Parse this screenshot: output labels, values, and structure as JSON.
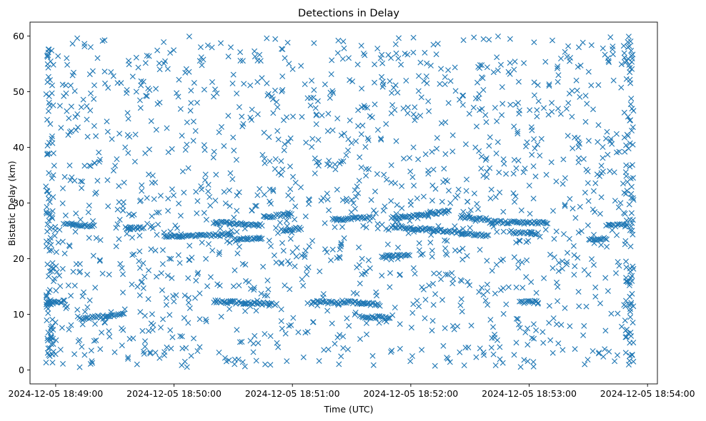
{
  "chart_data": {
    "type": "scatter",
    "title": "Detections in Delay",
    "xlabel": "Time (UTC)",
    "ylabel": "Bistatic Delay (km)",
    "marker": "x",
    "color": "#1f77b4",
    "grid": false,
    "legend": "none",
    "xlim": [
      "2024-12-05 18:48:47",
      "2024-12-05 18:54:05"
    ],
    "ylim": [
      -2.5,
      62.5
    ],
    "x_ticks": [
      "2024-12-05 18:49:00",
      "2024-12-05 18:50:00",
      "2024-12-05 18:51:00",
      "2024-12-05 18:52:00",
      "2024-12-05 18:53:00",
      "2024-12-05 18:54:00"
    ],
    "y_ticks": [
      "0",
      "10",
      "20",
      "30",
      "40",
      "50",
      "60"
    ],
    "y_tick_values": [
      0,
      10,
      20,
      30,
      40,
      50,
      60
    ],
    "x_start": "2024-12-05 18:48:55",
    "x_end": "2024-12-05 18:53:53",
    "tracks": [
      {
        "x_start": "2024-12-05 18:48:55",
        "x_end": "2024-12-05 18:49:05",
        "y_start": 12.0,
        "y_end": 12.4
      },
      {
        "x_start": "2024-12-05 18:49:05",
        "x_end": "2024-12-05 18:49:20",
        "y_start": 26.2,
        "y_end": 25.8
      },
      {
        "x_start": "2024-12-05 18:49:12",
        "x_end": "2024-12-05 18:49:35",
        "y_start": 9.2,
        "y_end": 10.0
      },
      {
        "x_start": "2024-12-05 18:49:35",
        "x_end": "2024-12-05 18:49:45",
        "y_start": 25.5,
        "y_end": 25.5
      },
      {
        "x_start": "2024-12-05 18:49:55",
        "x_end": "2024-12-05 18:50:30",
        "y_start": 24.0,
        "y_end": 24.3
      },
      {
        "x_start": "2024-12-05 18:50:20",
        "x_end": "2024-12-05 18:50:50",
        "y_start": 12.3,
        "y_end": 11.9
      },
      {
        "x_start": "2024-12-05 18:50:20",
        "x_end": "2024-12-05 18:50:45",
        "y_start": 26.5,
        "y_end": 26.0
      },
      {
        "x_start": "2024-12-05 18:50:30",
        "x_end": "2024-12-05 18:50:45",
        "y_start": 23.5,
        "y_end": 23.5
      },
      {
        "x_start": "2024-12-05 18:50:45",
        "x_end": "2024-12-05 18:51:00",
        "y_start": 27.5,
        "y_end": 28.0
      },
      {
        "x_start": "2024-12-05 18:50:55",
        "x_end": "2024-12-05 18:51:05",
        "y_start": 25.0,
        "y_end": 25.5
      },
      {
        "x_start": "2024-12-05 18:51:10",
        "x_end": "2024-12-05 18:51:25",
        "y_start": 12.3,
        "y_end": 12.0
      },
      {
        "x_start": "2024-12-05 18:51:20",
        "x_end": "2024-12-05 18:51:40",
        "y_start": 27.0,
        "y_end": 27.5
      },
      {
        "x_start": "2024-12-05 18:51:25",
        "x_end": "2024-12-05 18:51:45",
        "y_start": 12.3,
        "y_end": 11.7
      },
      {
        "x_start": "2024-12-05 18:51:35",
        "x_end": "2024-12-05 18:51:50",
        "y_start": 9.5,
        "y_end": 9.5
      },
      {
        "x_start": "2024-12-05 18:51:45",
        "x_end": "2024-12-05 18:52:00",
        "y_start": 20.5,
        "y_end": 20.5
      },
      {
        "x_start": "2024-12-05 18:51:50",
        "x_end": "2024-12-05 18:52:25",
        "y_start": 25.8,
        "y_end": 24.7
      },
      {
        "x_start": "2024-12-05 18:51:50",
        "x_end": "2024-12-05 18:52:20",
        "y_start": 27.3,
        "y_end": 28.5
      },
      {
        "x_start": "2024-12-05 18:52:25",
        "x_end": "2024-12-05 18:52:40",
        "y_start": 24.5,
        "y_end": 24.2
      },
      {
        "x_start": "2024-12-05 18:52:25",
        "x_end": "2024-12-05 18:52:40",
        "y_start": 27.5,
        "y_end": 27.0
      },
      {
        "x_start": "2024-12-05 18:52:40",
        "x_end": "2024-12-05 18:53:10",
        "y_start": 26.6,
        "y_end": 26.4
      },
      {
        "x_start": "2024-12-05 18:52:50",
        "x_end": "2024-12-05 18:53:05",
        "y_start": 24.8,
        "y_end": 24.5
      },
      {
        "x_start": "2024-12-05 18:52:55",
        "x_end": "2024-12-05 18:53:05",
        "y_start": 12.2,
        "y_end": 12.2
      },
      {
        "x_start": "2024-12-05 18:53:30",
        "x_end": "2024-12-05 18:53:40",
        "y_start": 23.5,
        "y_end": 23.5
      },
      {
        "x_start": "2024-12-05 18:53:40",
        "x_end": "2024-12-05 18:53:50",
        "y_start": 26.0,
        "y_end": 26.0
      }
    ]
  }
}
